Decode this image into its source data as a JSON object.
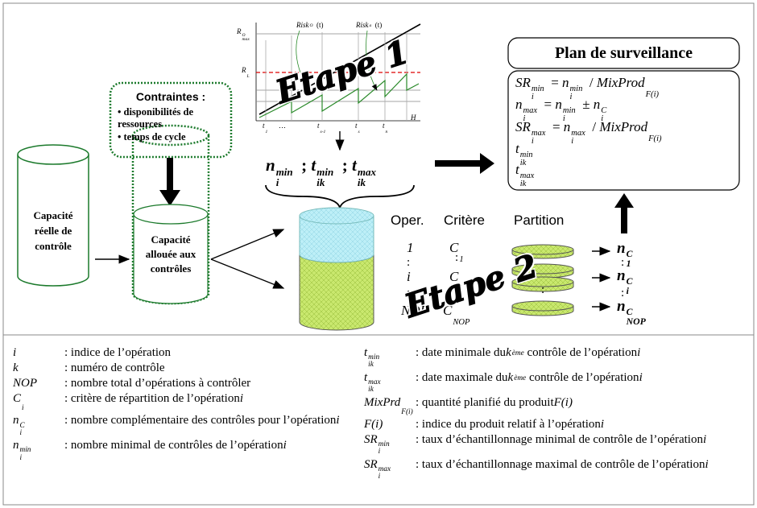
{
  "step1": {
    "label": "Etape 1",
    "graph": {
      "y_labels": [
        [
          {
            "base": "R",
            "sup": "O",
            "sub": "max"
          }
        ],
        [
          {
            "base": "R",
            "sub": "L"
          }
        ]
      ],
      "curve_labels": [
        [
          {
            "base": "Risk",
            "sup": "O"
          },
          "(t)"
        ],
        [
          {
            "base": "Risk",
            "sup": "a"
          },
          "(t)"
        ]
      ],
      "x_labels": [
        [
          {
            "base": "t",
            "sub": "1"
          }
        ],
        [
          "…"
        ],
        [
          {
            "base": "t",
            "sub": "s-1"
          }
        ],
        [
          {
            "base": "t",
            "sub": "s"
          }
        ],
        [
          {
            "base": "t",
            "sub": "n"
          }
        ],
        [
          {
            "base": "H"
          }
        ]
      ]
    },
    "output": [
      {
        "base": "n",
        "sub": "i",
        "sup": "min"
      },
      ";",
      {
        "base": "t",
        "sub": "ik",
        "sup": "min"
      },
      ";",
      {
        "base": "t",
        "sub": "ik",
        "sup": "max"
      }
    ]
  },
  "constraints": {
    "title": "Contraintes :",
    "items": [
      "• disponibilités de ressources",
      "• temps de cycle"
    ]
  },
  "cylinders": [
    "Capacité réelle de contrôle",
    "Capacité allouée aux contrôles"
  ],
  "step2": {
    "label": "Etape 2",
    "headers": [
      "Oper.",
      "Critère",
      "Partition"
    ],
    "ellipsis": ":",
    "rows": [
      {
        "oper": [
          {
            "base": "1"
          }
        ],
        "criterion": [
          {
            "base": "C",
            "sub": "1"
          }
        ],
        "result": [
          {
            "base": "n",
            "sub": "1",
            "sup": "C"
          }
        ]
      },
      {
        "oper": [
          {
            "base": "i"
          }
        ],
        "criterion": [
          {
            "base": "C",
            "sub": "i"
          }
        ],
        "result": [
          {
            "base": "n",
            "sub": "i",
            "sup": "C"
          }
        ]
      },
      {
        "oper": [
          {
            "base": "NOP"
          }
        ],
        "criterion": [
          {
            "base": "C",
            "sub": "NOP"
          }
        ],
        "result": [
          {
            "base": "n",
            "sup": "C",
            "sub": "NOP"
          }
        ]
      }
    ]
  },
  "plan": {
    "title": "Plan de surveillance",
    "formulas": [
      [
        {
          "base": "SR",
          "sub": "i",
          "sup": "min"
        },
        "=",
        {
          "base": "n",
          "sub": "i",
          "sup": "min"
        },
        "/",
        {
          "base": "MixProd",
          "sub": "F(i)"
        }
      ],
      [
        {
          "base": "n",
          "sub": "i",
          "sup": "max"
        },
        "=",
        {
          "base": "n",
          "sub": "i",
          "sup": "min"
        },
        "±",
        {
          "base": "n",
          "sub": "i",
          "sup": "C"
        }
      ],
      [
        {
          "base": "SR",
          "sub": "i",
          "sup": "max"
        },
        "=",
        {
          "base": "n",
          "sub": "i",
          "sup": "max"
        },
        "/",
        {
          "base": "MixProd",
          "sub": "F(i)"
        }
      ],
      [
        {
          "base": "t",
          "sub": "ik",
          "sup": "min"
        }
      ],
      [
        {
          "base": "t",
          "sub": "ik",
          "sup": "max"
        }
      ]
    ]
  },
  "legend": {
    "left": [
      {
        "symbol": [
          {
            "base": "i"
          }
        ],
        "description": [
          ": indice de l’opération"
        ]
      },
      {
        "symbol": [
          {
            "base": "k"
          }
        ],
        "description": [
          ": numéro de contrôle"
        ]
      },
      {
        "symbol": [
          {
            "base": "NOP"
          }
        ],
        "description": [
          ": nombre total d’opérations à contrôler"
        ]
      },
      {
        "symbol": [
          {
            "base": "C",
            "sub": "i"
          }
        ],
        "description": [
          ": critère de répartition de l’opération",
          {
            "base": "i"
          }
        ]
      },
      {
        "symbol": [
          {
            "base": "n",
            "sub": "i",
            "sup": "C"
          }
        ],
        "description": [
          ": nombre complémentaire des contrôles pour l’opération",
          {
            "base": "i"
          }
        ]
      },
      {
        "symbol": [
          {
            "base": "n",
            "sub": "i",
            "sup": "min"
          }
        ],
        "description": [
          ": nombre minimal de contrôles de l’opération",
          {
            "base": "i"
          }
        ]
      }
    ],
    "right": [
      {
        "symbol": [
          {
            "base": "t",
            "sub": "ik",
            "sup": "min"
          }
        ],
        "description": [
          ": date minimale du",
          {
            "base": "k",
            "sup": "ème"
          },
          "contrôle de l’opération",
          {
            "base": "i"
          }
        ]
      },
      {
        "symbol": [
          {
            "base": "t",
            "sub": "ik",
            "sup": "max"
          }
        ],
        "description": [
          ": date maximale du",
          {
            "base": "k",
            "sup": "ème"
          },
          "contrôle de l’opération",
          {
            "base": "i"
          }
        ]
      },
      {
        "symbol": [
          {
            "base": "MixPrd",
            "sub": "F(i)"
          }
        ],
        "description": [
          ": quantité planifié du produit",
          {
            "base": "F(i)"
          }
        ]
      },
      {
        "symbol": [
          {
            "base": "F(i)"
          }
        ],
        "description": [
          ": indice du produit relatif à l’opération",
          {
            "base": "i"
          }
        ]
      },
      {
        "symbol": [
          {
            "base": "SR",
            "sub": "i",
            "sup": "min"
          }
        ],
        "description": [
          ": taux d’échantillonnage minimal de contrôle de l’opération",
          {
            "base": "i"
          }
        ]
      },
      {
        "symbol": [
          {
            "base": "SR",
            "sub": "i",
            "sup": "max"
          }
        ],
        "description": [
          ": taux d’échantillonnage maximal de contrôle de l’opération",
          {
            "base": "i"
          }
        ]
      }
    ]
  }
}
